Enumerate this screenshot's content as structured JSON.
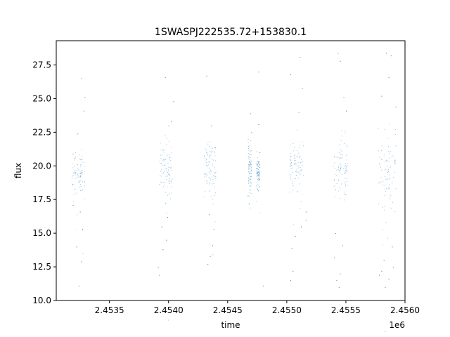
{
  "chart_data": {
    "type": "scatter",
    "title": "1SWASPJ222535.72+153830.1",
    "xlabel": "time",
    "ylabel": "flux",
    "x_offset_label": "1e6",
    "xlim": [
      2.45305,
      2.456
    ],
    "ylim": [
      10.0,
      29.3
    ],
    "x_ticks": [
      2.4535,
      2.454,
      2.4545,
      2.455,
      2.4555,
      2.456
    ],
    "x_tick_labels": [
      "2.4535",
      "2.4540",
      "2.4545",
      "2.4550",
      "2.4555",
      "2.4560"
    ],
    "y_ticks": [
      10.0,
      12.5,
      15.0,
      17.5,
      20.0,
      22.5,
      25.0,
      27.5
    ],
    "y_tick_labels": [
      "10.0",
      "12.5",
      "15.0",
      "17.5",
      "20.0",
      "22.5",
      "25.0",
      "27.5"
    ],
    "grid": false,
    "legend": "none",
    "marker_color": "#1f77b4",
    "series": [
      {
        "segments": [
          {
            "x_start": 2.45318,
            "x_end": 2.45329,
            "center": 19.6,
            "spread": 0.9,
            "outliers": [
              [
                2.45324,
                11.1
              ],
              [
                2.45326,
                12.9
              ],
              [
                2.45322,
                14.0
              ],
              [
                2.45327,
                15.3
              ],
              [
                2.45325,
                16.6
              ],
              [
                2.45323,
                22.4
              ],
              [
                2.45328,
                24.1
              ],
              [
                2.45326,
                26.5
              ],
              [
                2.45329,
                25.1
              ],
              [
                2.45319,
                17.1
              ]
            ]
          },
          {
            "x_start": 2.45392,
            "x_end": 2.45403,
            "center": 19.7,
            "spread": 1.0,
            "outliers": [
              [
                2.45391,
                12.5
              ],
              [
                2.45392,
                11.9
              ],
              [
                2.45395,
                13.8
              ],
              [
                2.45398,
                14.5
              ],
              [
                2.45397,
                26.6
              ],
              [
                2.45402,
                23.3
              ],
              [
                2.45404,
                24.8
              ],
              [
                2.454,
                23.0
              ],
              [
                2.45394,
                15.5
              ],
              [
                2.45399,
                16.2
              ]
            ]
          },
          {
            "x_start": 2.4543,
            "x_end": 2.4544,
            "center": 19.8,
            "spread": 1.0,
            "outliers": [
              [
                2.45433,
                12.7
              ],
              [
                2.45435,
                13.3
              ],
              [
                2.45437,
                14.1
              ],
              [
                2.45432,
                26.7
              ],
              [
                2.45436,
                23.0
              ],
              [
                2.45439,
                21.4
              ],
              [
                2.45434,
                16.4
              ],
              [
                2.45438,
                15.3
              ]
            ]
          },
          {
            "x_start": 2.45467,
            "x_end": 2.4547,
            "center": 19.9,
            "spread": 0.9,
            "outliers": [
              [
                2.45468,
                17.2
              ],
              [
                2.45469,
                23.9
              ],
              [
                2.45467,
                17.8
              ],
              [
                2.4547,
                22.5
              ]
            ]
          },
          {
            "x_start": 2.45474,
            "x_end": 2.45477,
            "center": 19.6,
            "spread": 0.5,
            "outliers": [
              [
                2.45476,
                27.0
              ],
              [
                2.45476,
                23.1
              ],
              [
                2.45475,
                18.3
              ],
              [
                2.4548,
                11.1
              ],
              [
                2.45477,
                21.0
              ]
            ]
          },
          {
            "x_start": 2.45502,
            "x_end": 2.45514,
            "center": 19.9,
            "spread": 1.0,
            "outliers": [
              [
                2.45503,
                11.5
              ],
              [
                2.45505,
                12.2
              ],
              [
                2.45504,
                13.9
              ],
              [
                2.45507,
                14.8
              ],
              [
                2.45512,
                15.5
              ],
              [
                2.45503,
                26.8
              ],
              [
                2.45511,
                28.1
              ],
              [
                2.45513,
                25.8
              ],
              [
                2.45516,
                16.6
              ],
              [
                2.45516,
                16.0
              ],
              [
                2.4551,
                24.0
              ]
            ]
          },
          {
            "x_start": 2.45539,
            "x_end": 2.45551,
            "center": 19.8,
            "spread": 1.1,
            "outliers": [
              [
                2.4554,
                13.2
              ],
              [
                2.45542,
                11.5
              ],
              [
                2.45544,
                11.0
              ],
              [
                2.45545,
                12.0
              ],
              [
                2.45547,
                14.1
              ],
              [
                2.45543,
                28.4
              ],
              [
                2.45545,
                27.8
              ],
              [
                2.4555,
                24.1
              ],
              [
                2.45548,
                25.1
              ],
              [
                2.45541,
                15.0
              ]
            ]
          },
          {
            "x_start": 2.45577,
            "x_end": 2.45592,
            "center": 19.6,
            "spread": 1.5,
            "outliers": [
              [
                2.45578,
                11.9
              ],
              [
                2.4558,
                12.2
              ],
              [
                2.45583,
                11.0
              ],
              [
                2.45586,
                11.6
              ],
              [
                2.4559,
                12.5
              ],
              [
                2.45584,
                28.4
              ],
              [
                2.45588,
                28.2
              ],
              [
                2.45586,
                26.6
              ],
              [
                2.4558,
                25.2
              ],
              [
                2.45592,
                24.4
              ],
              [
                2.45582,
                13.0
              ],
              [
                2.45589,
                14.0
              ]
            ]
          }
        ]
      }
    ]
  }
}
